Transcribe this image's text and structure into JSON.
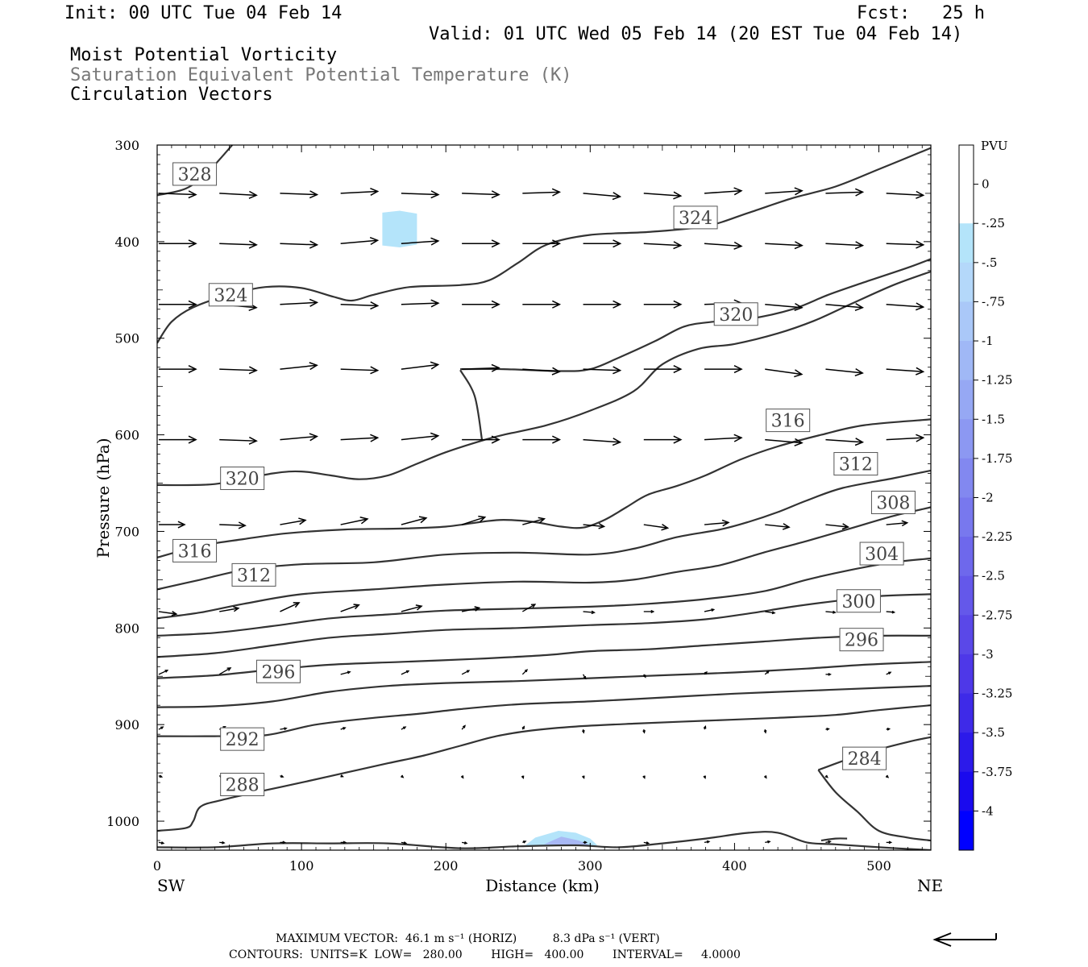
{
  "header": {
    "init": "Init: 00 UTC Tue 04 Feb 14",
    "fcst": "Fcst:   25 h",
    "valid": "Valid: 01 UTC Wed 05 Feb 14 (20 EST Tue 04 Feb 14)",
    "field1": "Moist Potential Vorticity",
    "field2": "Saturation Equivalent Potential Temperature (K)",
    "field3": "Circulation Vectors"
  },
  "footer": {
    "max_vector": "MAXIMUM VECTOR:  46.1 m s⁻¹ (HORIZ)          8.3 dPa s⁻¹ (VERT)",
    "contours": "CONTOURS:  UNITS=K  LOW=   280.00        HIGH=   400.00        INTERVAL=     4.0000"
  },
  "chart_data": {
    "type": "contour",
    "xlabel": "Distance (km)",
    "ylabel": "Pressure (hPa)",
    "x_left_label": "SW",
    "x_right_label": "NE",
    "xlim": [
      0,
      536
    ],
    "ylim": [
      1030,
      300
    ],
    "xticks": [
      0,
      100,
      200,
      300,
      400,
      500
    ],
    "yticks": [
      300,
      400,
      500,
      600,
      700,
      800,
      900,
      1000
    ],
    "colorbar": {
      "title": "PVU",
      "labels": [
        "0",
        "-.25",
        "-.5",
        "-.75",
        "-1",
        "-1.25",
        "-1.5",
        "-1.75",
        "-2",
        "-2.25",
        "-2.5",
        "-2.75",
        "-3",
        "-3.25",
        "-3.5",
        "-3.75",
        "-4"
      ],
      "colors": [
        "#ffffff",
        "#ffffff",
        "#b4e4fa",
        "#b4d8fa",
        "#aac8f8",
        "#a0b8f6",
        "#96a8f4",
        "#8c98f2",
        "#8288f0",
        "#7878ee",
        "#6e68ec",
        "#6458ea",
        "#5a48e8",
        "#4e38e8",
        "#3e2ae8",
        "#2c1aea",
        "#1a0aee",
        "#0000ff"
      ]
    },
    "contour_labels": [
      {
        "value": "328",
        "x": 26,
        "p": 330
      },
      {
        "value": "324",
        "x": 51,
        "p": 455
      },
      {
        "value": "324",
        "x": 373,
        "p": 375
      },
      {
        "value": "320",
        "x": 401,
        "p": 475
      },
      {
        "value": "320",
        "x": 59,
        "p": 645
      },
      {
        "value": "316",
        "x": 437,
        "p": 585
      },
      {
        "value": "316",
        "x": 26,
        "p": 720
      },
      {
        "value": "312",
        "x": 484,
        "p": 630
      },
      {
        "value": "312",
        "x": 67,
        "p": 745
      },
      {
        "value": "308",
        "x": 510,
        "p": 670
      },
      {
        "value": "304",
        "x": 502,
        "p": 723
      },
      {
        "value": "300",
        "x": 486,
        "p": 772
      },
      {
        "value": "296",
        "x": 488,
        "p": 812
      },
      {
        "value": "296",
        "x": 84,
        "p": 845
      },
      {
        "value": "292",
        "x": 59,
        "p": 915
      },
      {
        "value": "288",
        "x": 59,
        "p": 962
      },
      {
        "value": "284",
        "x": 490,
        "p": 935
      }
    ],
    "pv_shading": [
      {
        "value": "-.25",
        "region": "x 156-182 km, 370-405 hPa"
      },
      {
        "value": "-.25",
        "region": "x 255-305 km, 1010-1025 hPa"
      }
    ]
  },
  "arrow_key": "reference-vector"
}
